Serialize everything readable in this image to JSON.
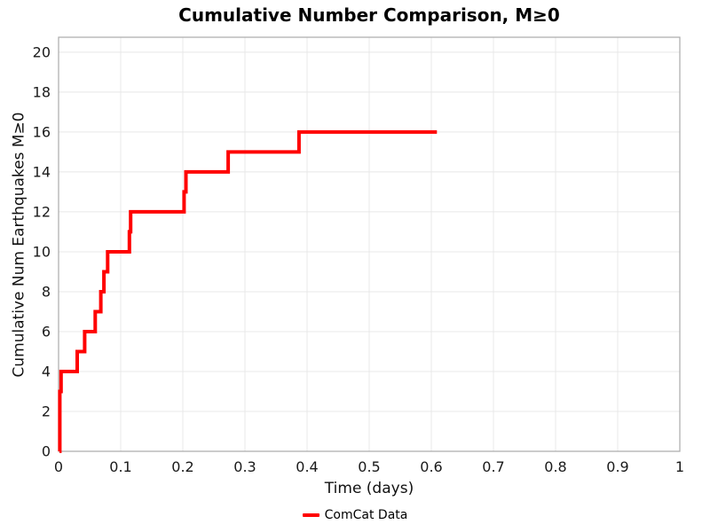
{
  "chart_data": {
    "type": "line",
    "subtype": "cumulative-step",
    "title": "Cumulative Number Comparison, M≥0",
    "xlabel": "Time (days)",
    "ylabel": "Cumulative Num Earthquakes M≥0",
    "xlim": [
      0,
      1
    ],
    "ylim": [
      0,
      20.75
    ],
    "grid": true,
    "x_ticks": [
      {
        "value": 0,
        "label": "0"
      },
      {
        "value": 0.1,
        "label": "0.1"
      },
      {
        "value": 0.2,
        "label": "0.2"
      },
      {
        "value": 0.3,
        "label": "0.3"
      },
      {
        "value": 0.4,
        "label": "0.4"
      },
      {
        "value": 0.5,
        "label": "0.5"
      },
      {
        "value": 0.6,
        "label": "0.6"
      },
      {
        "value": 0.7,
        "label": "0.7"
      },
      {
        "value": 0.8,
        "label": "0.8"
      },
      {
        "value": 0.9,
        "label": "0.9"
      },
      {
        "value": 1,
        "label": "1"
      }
    ],
    "y_ticks": [
      {
        "value": 0,
        "label": "0"
      },
      {
        "value": 2,
        "label": "2"
      },
      {
        "value": 4,
        "label": "4"
      },
      {
        "value": 6,
        "label": "6"
      },
      {
        "value": 8,
        "label": "8"
      },
      {
        "value": 10,
        "label": "10"
      },
      {
        "value": 12,
        "label": "12"
      },
      {
        "value": 14,
        "label": "14"
      },
      {
        "value": 16,
        "label": "16"
      },
      {
        "value": 18,
        "label": "18"
      },
      {
        "value": 20,
        "label": "20"
      }
    ],
    "legend": {
      "label": "ComCat Data",
      "position": "bottom-center"
    },
    "colors": {
      "series": "#ff0000",
      "grid": "#e8e8e8",
      "spine": "#aaaaaa",
      "text": "#1a1a1a"
    },
    "series": [
      {
        "name": "ComCat Data",
        "color": "#ff0000",
        "line_width": 4,
        "step_mode": "post",
        "start": [
          0.0015,
          0
        ],
        "events": [
          [
            0.002,
            1
          ],
          [
            0.002,
            2
          ],
          [
            0.002,
            3
          ],
          [
            0.004,
            4
          ],
          [
            0.03,
            5
          ],
          [
            0.042,
            6
          ],
          [
            0.059,
            7
          ],
          [
            0.068,
            8
          ],
          [
            0.073,
            9
          ],
          [
            0.079,
            10
          ],
          [
            0.114,
            11
          ],
          [
            0.116,
            12
          ],
          [
            0.202,
            13
          ],
          [
            0.205,
            14
          ],
          [
            0.273,
            15
          ],
          [
            0.387,
            16
          ]
        ],
        "end_x": 0.609
      }
    ]
  }
}
